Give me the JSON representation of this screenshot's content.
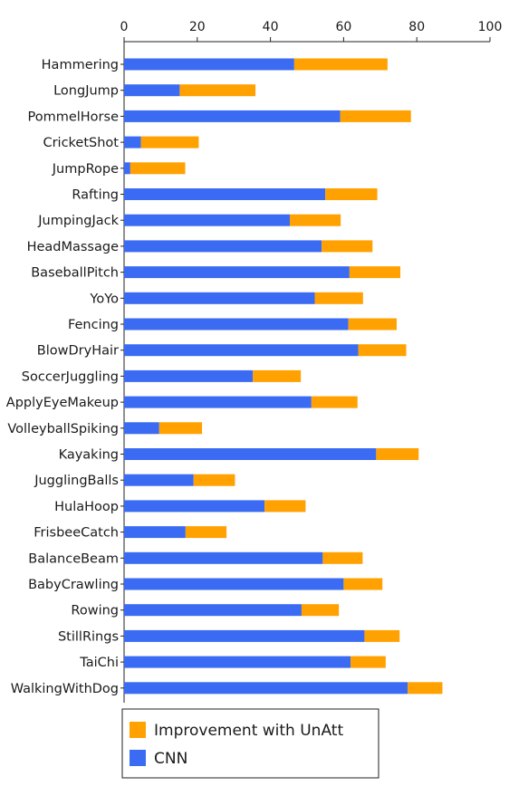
{
  "chart_data": {
    "type": "bar",
    "orientation": "horizontal",
    "stacked": true,
    "title": "",
    "xlabel": "",
    "ylabel": "",
    "xlim": [
      0,
      100
    ],
    "x_ticks": [
      0,
      20,
      40,
      60,
      80,
      100
    ],
    "x_axis_position": "top",
    "grid": false,
    "legend_position": "bottom-left",
    "categories": [
      "Hammering",
      "LongJump",
      "PommelHorse",
      "CricketShot",
      "JumpRope",
      "Rafting",
      "JumpingJack",
      "HeadMassage",
      "BaseballPitch",
      "YoYo",
      "Fencing",
      "BlowDryHair",
      "SoccerJuggling",
      "ApplyEyeMakeup",
      "VolleyballSpiking",
      "Kayaking",
      "JugglingBalls",
      "HulaHoop",
      "FrisbeeCatch",
      "BalanceBeam",
      "BabyCrawling",
      "Rowing",
      "StillRings",
      "TaiChi",
      "WalkingWithDog"
    ],
    "series": [
      {
        "name": "CNN",
        "color": "#3b6bf2",
        "values": [
          46.5,
          15.2,
          59.1,
          4.6,
          1.7,
          55.0,
          45.3,
          54.0,
          61.6,
          52.1,
          61.3,
          64.0,
          35.2,
          51.2,
          9.6,
          68.9,
          19.0,
          38.4,
          16.8,
          54.3,
          60.0,
          48.5,
          65.7,
          61.9,
          77.5
        ]
      },
      {
        "name": "Improvement with UnAtt",
        "color": "#ffa100",
        "values": [
          25.5,
          20.7,
          19.3,
          15.8,
          15.0,
          14.2,
          13.9,
          13.9,
          13.9,
          13.2,
          13.2,
          13.1,
          13.1,
          12.6,
          11.7,
          11.6,
          11.3,
          11.2,
          11.2,
          10.9,
          10.6,
          10.2,
          9.6,
          9.6,
          9.5
        ]
      }
    ],
    "legend": [
      {
        "label": "Improvement with UnAtt",
        "color": "#ffa100"
      },
      {
        "label": "CNN",
        "color": "#3b6bf2"
      }
    ]
  }
}
